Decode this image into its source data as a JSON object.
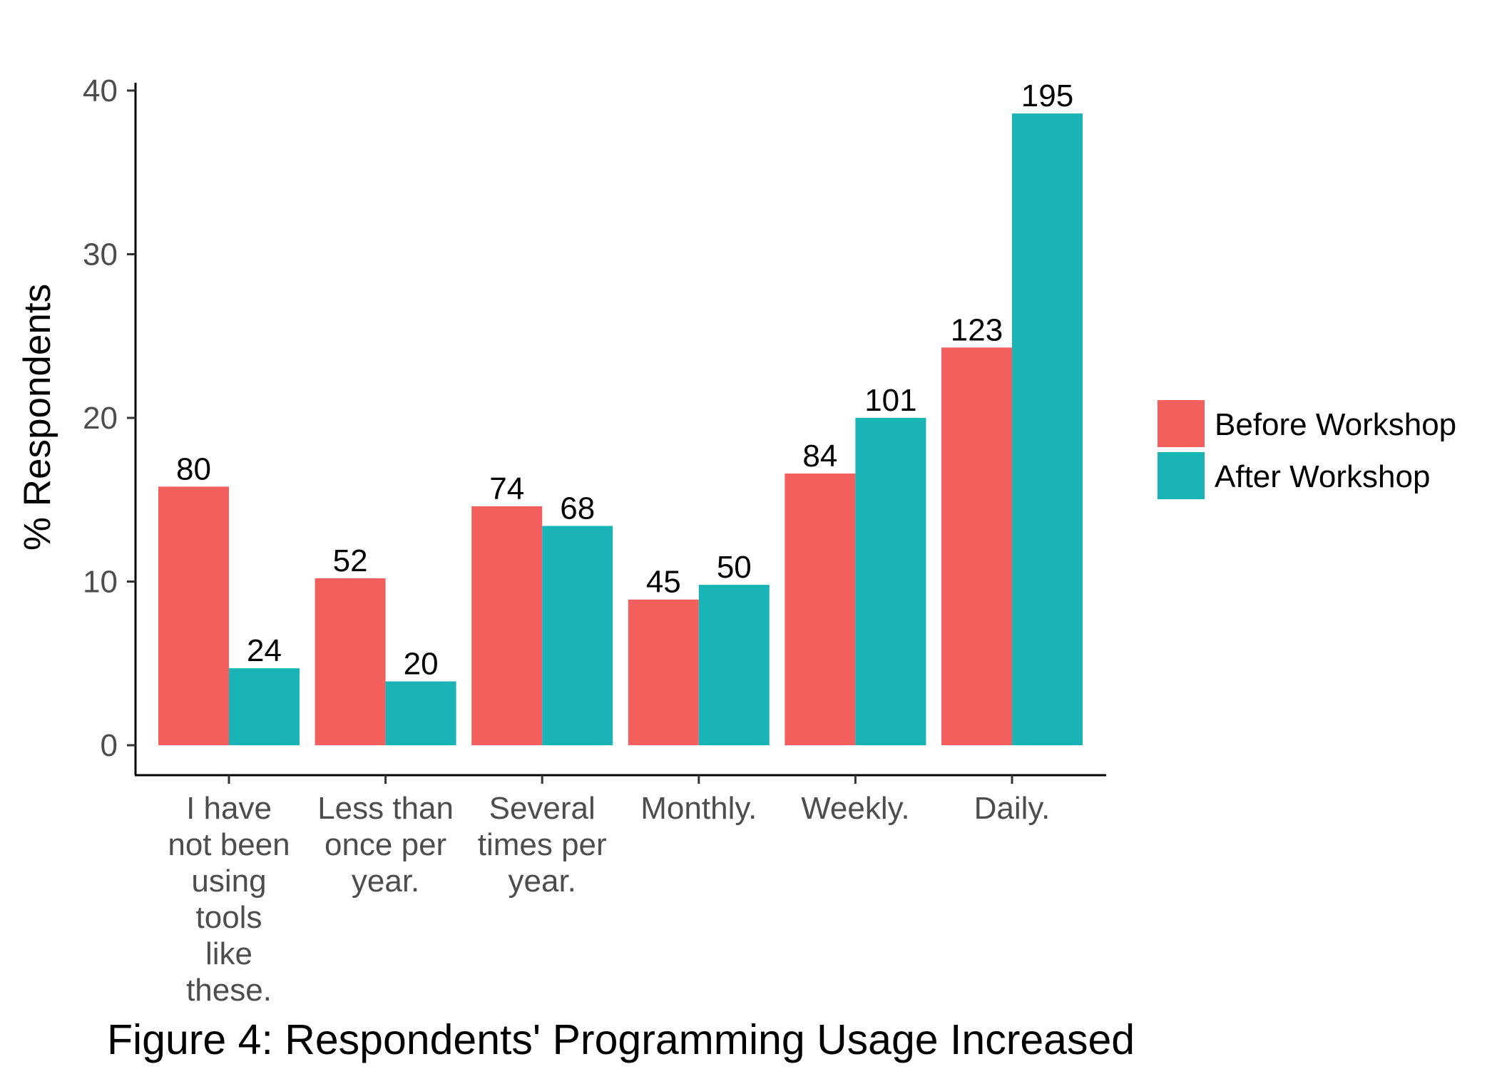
{
  "chart_data": {
    "type": "bar",
    "title": "",
    "caption": "Figure 4: Respondents' Programming Usage Increased",
    "xlabel": "",
    "ylabel": "% Respondents",
    "ylim": [
      0,
      42
    ],
    "yticks": [
      0,
      10,
      20,
      30,
      40
    ],
    "grid": false,
    "legend_position": "right",
    "categories": [
      [
        "I have",
        "not been",
        "using",
        "tools",
        "like",
        "these."
      ],
      [
        "Less than",
        "once per",
        "year."
      ],
      [
        "Several",
        "times per",
        "year."
      ],
      [
        "Monthly."
      ],
      [
        "Weekly."
      ],
      [
        "Daily."
      ]
    ],
    "series": [
      {
        "name": "Before Workshop",
        "color": "#F25F5C",
        "values": [
          15.8,
          10.2,
          14.6,
          8.9,
          16.6,
          24.3
        ],
        "labels": [
          "80",
          "52",
          "74",
          "45",
          "84",
          "123"
        ]
      },
      {
        "name": "After Workshop",
        "color": "#1AB3B6",
        "values": [
          4.7,
          3.9,
          13.4,
          9.8,
          20.0,
          38.6
        ],
        "labels": [
          "24",
          "20",
          "68",
          "50",
          "101",
          "195"
        ]
      }
    ]
  }
}
